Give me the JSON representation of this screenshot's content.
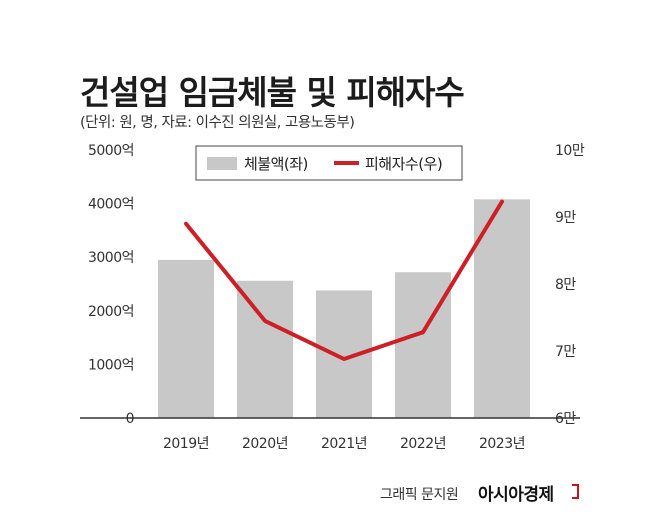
{
  "title": "건설업 임금체불 및 피해자수",
  "subtitle": "(단위: 원, 명, 자료: 이수진 의원실, 고용노동부)",
  "colors": {
    "bar": "#c8c8c8",
    "line": "#cc1f26",
    "axis": "#333333"
  },
  "chart_data": {
    "type": "bar+line",
    "categories": [
      "2019년",
      "2020년",
      "2021년",
      "2022년",
      "2023년"
    ],
    "left_ticks": [
      "5000억",
      "4000억",
      "3000억",
      "2000억",
      "1000억",
      "0"
    ],
    "right_ticks": [
      "10만",
      "9만",
      "8만",
      "7만",
      "6만"
    ],
    "left_ylim": [
      0,
      5000
    ],
    "right_ylim": [
      60000,
      100000
    ],
    "series": [
      {
        "name": "체불액(좌)",
        "type": "bar",
        "axis": "left",
        "values": [
          2950,
          2560,
          2380,
          2720,
          4080
        ]
      },
      {
        "name": "피해자수(우)",
        "type": "line",
        "axis": "right",
        "values": [
          89000,
          74500,
          68800,
          72800,
          92300
        ]
      }
    ],
    "legend_placement": "top-center",
    "grid": false
  },
  "footer": {
    "credit": "그래픽 문지원",
    "brand": "아시아경제"
  }
}
